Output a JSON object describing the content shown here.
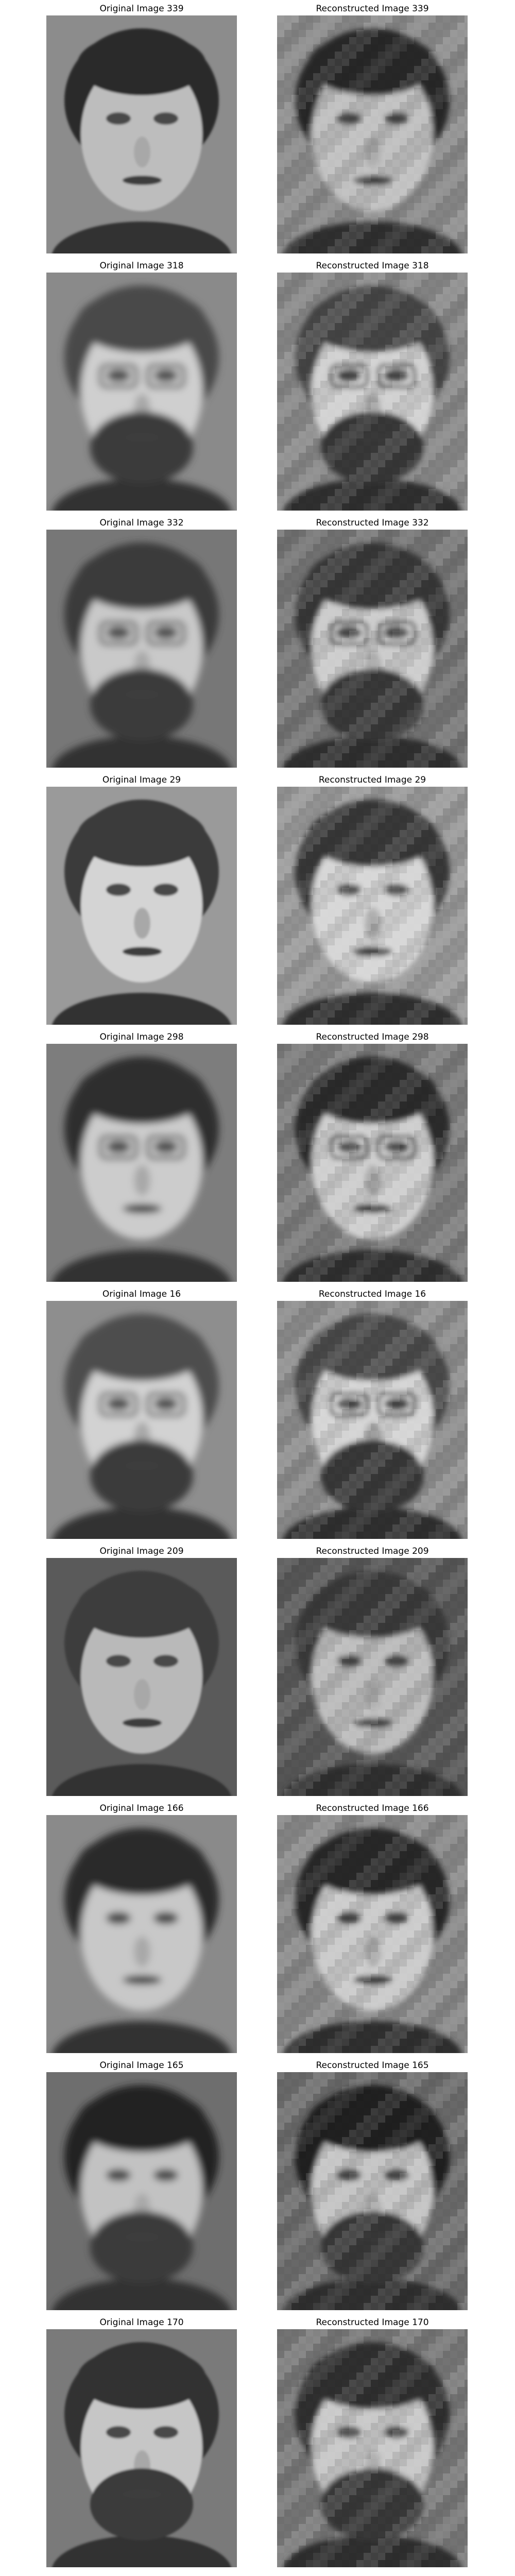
{
  "rows": [
    {
      "original_title": "Original Image 339",
      "reconstructed_title": "Reconstructed Image 339",
      "skin": "#bdbdbd",
      "hair": "#2a2a2a",
      "bg": "#8c8c8c",
      "beard": false,
      "glasses": false
    },
    {
      "original_title": "Original Image 318",
      "reconstructed_title": "Reconstructed Image 318",
      "skin": "#cfcfcf",
      "hair": "#4a4a4a",
      "bg": "#8a8a8a",
      "beard": true,
      "glasses": true
    },
    {
      "original_title": "Original Image 332",
      "reconstructed_title": "Reconstructed Image 332",
      "skin": "#c9c9c9",
      "hair": "#3a3a3a",
      "bg": "#777777",
      "beard": true,
      "glasses": true
    },
    {
      "original_title": "Original Image 29",
      "reconstructed_title": "Reconstructed Image 29",
      "skin": "#d4d4d4",
      "hair": "#3a3a3a",
      "bg": "#9a9a9a",
      "beard": false,
      "glasses": false
    },
    {
      "original_title": "Original Image 298",
      "reconstructed_title": "Reconstructed Image 298",
      "skin": "#cccccc",
      "hair": "#2e2e2e",
      "bg": "#7d7d7d",
      "beard": false,
      "glasses": true
    },
    {
      "original_title": "Original Image 16",
      "reconstructed_title": "Reconstructed Image 16",
      "skin": "#d2d2d2",
      "hair": "#4e4e4e",
      "bg": "#8e8e8e",
      "beard": true,
      "glasses": true
    },
    {
      "original_title": "Original Image 209",
      "reconstructed_title": "Reconstructed Image 209",
      "skin": "#b9b9b9",
      "hair": "#3e3e3e",
      "bg": "#5a5a5a",
      "beard": false,
      "glasses": false
    },
    {
      "original_title": "Original Image 166",
      "reconstructed_title": "Reconstructed Image 166",
      "skin": "#c8c8c8",
      "hair": "#2c2c2c",
      "bg": "#8a8a8a",
      "beard": false,
      "glasses": false
    },
    {
      "original_title": "Original Image 165",
      "reconstructed_title": "Reconstructed Image 165",
      "skin": "#c2c2c2",
      "hair": "#202020",
      "bg": "#6e6e6e",
      "beard": true,
      "glasses": false
    },
    {
      "original_title": "Original Image 170",
      "reconstructed_title": "Reconstructed Image 170",
      "skin": "#c6c6c6",
      "hair": "#303030",
      "bg": "#7a7a7a",
      "beard": true,
      "glasses": false
    }
  ]
}
